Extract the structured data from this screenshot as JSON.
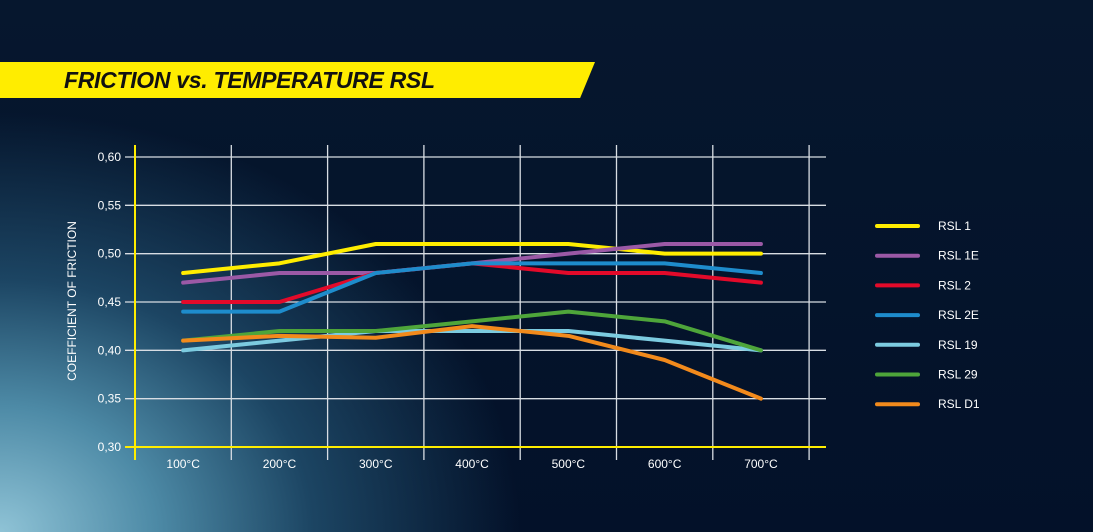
{
  "chart_data": {
    "type": "line",
    "title": "FRICTION vs. TEMPERATURE RSL",
    "xlabel": "",
    "ylabel": "COEFFICIENT OF FRICTION",
    "categories": [
      "100°C",
      "200°C",
      "300°C",
      "400°C",
      "500°C",
      "600°C",
      "700°C"
    ],
    "ylim": [
      0.3,
      0.6
    ],
    "yticks": [
      "0,30",
      "0,35",
      "0,40",
      "0,45",
      "0,50",
      "0,55",
      "0,60"
    ],
    "grid": true,
    "legend_position": "right",
    "series": [
      {
        "name": "RSL 1",
        "color": "#ffed00",
        "values": [
          0.48,
          0.49,
          0.51,
          0.51,
          0.51,
          0.5,
          0.5
        ]
      },
      {
        "name": "RSL 1E",
        "color": "#9b59a6",
        "values": [
          0.47,
          0.48,
          0.48,
          0.49,
          0.5,
          0.51,
          0.51
        ]
      },
      {
        "name": "RSL 2",
        "color": "#e30a2a",
        "values": [
          0.45,
          0.45,
          0.48,
          0.49,
          0.48,
          0.48,
          0.47
        ]
      },
      {
        "name": "RSL 2E",
        "color": "#1e8ccc",
        "values": [
          0.44,
          0.44,
          0.48,
          0.49,
          0.49,
          0.49,
          0.48
        ]
      },
      {
        "name": "RSL 19",
        "color": "#7ccbe0",
        "values": [
          0.4,
          0.41,
          0.42,
          0.42,
          0.42,
          0.41,
          0.4
        ]
      },
      {
        "name": "RSL 29",
        "color": "#4ea53a",
        "values": [
          0.41,
          0.42,
          0.42,
          0.43,
          0.44,
          0.43,
          0.4
        ]
      },
      {
        "name": "RSL D1",
        "color": "#f28a1c",
        "values": [
          0.41,
          0.415,
          0.413,
          0.425,
          0.415,
          0.39,
          0.35
        ]
      }
    ],
    "axis_color": "#ffed00"
  }
}
